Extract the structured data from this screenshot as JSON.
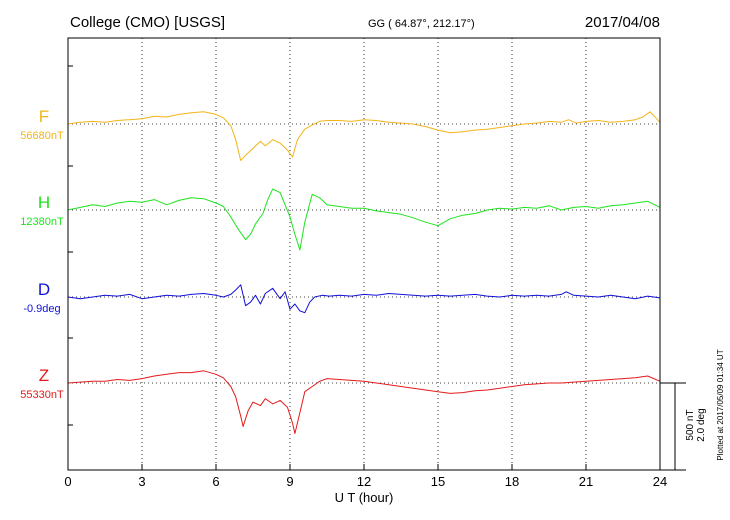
{
  "header": {
    "station": "College (CMO)  [USGS]",
    "coords": "GG ( 64.87°, 212.17°)",
    "date": "2017/04/08"
  },
  "side_note": "Plotted at 2017/05/09 01:34 UT",
  "scale_bar": {
    "nt": "500 nT",
    "deg": "2.0 deg"
  },
  "chart_data": {
    "type": "line",
    "xlabel": "U T (hour)",
    "xlim": [
      0,
      24
    ],
    "x_ticks": [
      0,
      3,
      6,
      9,
      12,
      15,
      18,
      21,
      24
    ],
    "grid": true,
    "y_unit_note": "each trace offset from its baseline; 100 units = 500 nT",
    "series": [
      {
        "name": "F",
        "baseline_label": "56680nT",
        "color": "#f2b418",
        "x": [
          0,
          0.5,
          1,
          1.5,
          2,
          2.5,
          3,
          3.5,
          4,
          4.5,
          5,
          5.5,
          6,
          6.3,
          6.6,
          6.8,
          7.0,
          7.2,
          7.5,
          7.8,
          8.0,
          8.3,
          8.6,
          8.9,
          9.1,
          9.3,
          9.6,
          9.9,
          10.2,
          10.5,
          11,
          11.5,
          12,
          12.5,
          13,
          13.5,
          14,
          14.5,
          15,
          15.5,
          16,
          16.5,
          17,
          17.5,
          18,
          18.5,
          19,
          19.5,
          20,
          20.3,
          20.6,
          21,
          21.5,
          22,
          22.5,
          23,
          23.3,
          23.6,
          24
        ],
        "y": [
          0,
          2,
          3,
          2,
          4,
          5,
          6,
          9,
          8,
          11,
          13,
          14,
          11,
          7,
          -2,
          -18,
          -42,
          -36,
          -28,
          -20,
          -25,
          -18,
          -22,
          -30,
          -38,
          -18,
          -6,
          -1,
          3,
          4,
          4,
          3,
          5,
          4,
          2,
          1,
          0,
          -3,
          -7,
          -10,
          -9,
          -7,
          -6,
          -4,
          -2,
          0,
          1,
          3,
          2,
          5,
          1,
          3,
          4,
          2,
          3,
          5,
          8,
          14,
          2
        ]
      },
      {
        "name": "H",
        "baseline_label": "12380nT",
        "color": "#1de51d",
        "x": [
          0,
          0.5,
          1,
          1.5,
          2,
          2.5,
          3,
          3.5,
          4,
          4.5,
          5,
          5.5,
          6,
          6.3,
          6.6,
          6.9,
          7.2,
          7.4,
          7.6,
          7.9,
          8.1,
          8.3,
          8.6,
          8.8,
          9.0,
          9.2,
          9.4,
          9.6,
          9.9,
          10.2,
          10.5,
          11,
          11.5,
          12,
          12.5,
          13,
          13.5,
          14,
          14.5,
          15,
          15.5,
          16,
          16.5,
          17,
          17.5,
          18,
          18.5,
          19,
          19.5,
          20,
          20.5,
          21,
          21.5,
          22,
          22.5,
          23,
          23.5,
          24
        ],
        "y": [
          0,
          3,
          6,
          4,
          8,
          10,
          9,
          12,
          6,
          11,
          14,
          13,
          8,
          4,
          -8,
          -22,
          -34,
          -28,
          -16,
          -4,
          12,
          24,
          20,
          6,
          -8,
          -28,
          -46,
          -14,
          18,
          14,
          6,
          4,
          2,
          2,
          -1,
          -3,
          -5,
          -9,
          -14,
          -18,
          -10,
          -6,
          -4,
          0,
          2,
          1,
          3,
          2,
          5,
          0,
          3,
          4,
          2,
          5,
          6,
          8,
          10,
          3
        ]
      },
      {
        "name": "D",
        "baseline_label": "-0.9deg",
        "color": "#1010d8",
        "x": [
          0,
          0.5,
          1,
          1.5,
          2,
          2.5,
          3,
          3.5,
          4,
          4.5,
          5,
          5.5,
          6,
          6.3,
          6.6,
          6.8,
          7.0,
          7.2,
          7.4,
          7.6,
          7.8,
          8.0,
          8.3,
          8.6,
          8.8,
          9.0,
          9.2,
          9.4,
          9.6,
          9.8,
          10,
          10.3,
          10.6,
          11,
          11.5,
          12,
          12.5,
          13,
          13.5,
          14,
          14.5,
          15,
          15.5,
          16,
          16.5,
          17,
          17.5,
          18,
          18.5,
          19,
          19.5,
          20,
          20.2,
          20.5,
          21,
          21.5,
          22,
          22.5,
          23,
          23.5,
          24
        ],
        "y": [
          0,
          -2,
          0,
          2,
          1,
          3,
          -2,
          0,
          2,
          1,
          3,
          4,
          2,
          0,
          3,
          8,
          14,
          -10,
          -6,
          2,
          -8,
          4,
          10,
          -2,
          6,
          -14,
          -8,
          -16,
          -18,
          -6,
          0,
          2,
          1,
          2,
          1,
          3,
          2,
          4,
          3,
          2,
          1,
          2,
          1,
          2,
          3,
          1,
          0,
          2,
          1,
          2,
          1,
          3,
          6,
          2,
          1,
          0,
          2,
          0,
          -2,
          1,
          -1
        ]
      },
      {
        "name": "Z",
        "baseline_label": "55330nT",
        "color": "#e51a1a",
        "x": [
          0,
          0.5,
          1,
          1.5,
          2,
          2.5,
          3,
          3.5,
          4,
          4.5,
          5,
          5.5,
          6,
          6.3,
          6.6,
          6.8,
          7.0,
          7.1,
          7.3,
          7.5,
          7.8,
          8.0,
          8.3,
          8.6,
          8.9,
          9.1,
          9.2,
          9.4,
          9.6,
          9.9,
          10.2,
          10.5,
          11,
          11.5,
          12,
          12.5,
          13,
          13.5,
          14,
          14.5,
          15,
          15.5,
          16,
          16.5,
          17,
          17.5,
          18,
          18.5,
          19,
          19.5,
          20,
          20.5,
          21,
          21.5,
          22,
          22.5,
          23,
          23.5,
          24
        ],
        "y": [
          0,
          1,
          2,
          2,
          4,
          3,
          5,
          8,
          10,
          12,
          12,
          14,
          10,
          6,
          -4,
          -16,
          -38,
          -50,
          -32,
          -22,
          -26,
          -18,
          -24,
          -20,
          -28,
          -46,
          -58,
          -34,
          -10,
          -4,
          2,
          5,
          4,
          3,
          2,
          0,
          -2,
          -4,
          -6,
          -8,
          -10,
          -12,
          -11,
          -9,
          -8,
          -6,
          -4,
          -2,
          -1,
          0,
          0,
          1,
          2,
          3,
          4,
          5,
          6,
          8,
          2
        ]
      }
    ]
  }
}
